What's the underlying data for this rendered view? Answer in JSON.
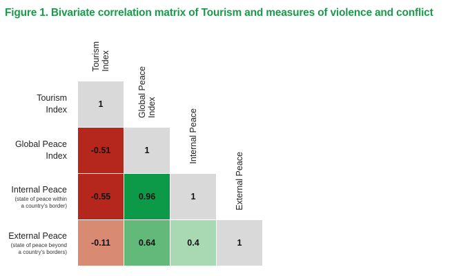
{
  "title": "Figure 1. Bivariate correlation matrix of Tourism and measures of violence and conflict",
  "chart_data": {
    "type": "heatmap",
    "columns": [
      [
        "Tourism",
        "Index"
      ],
      [
        "Global Peace",
        "Index"
      ],
      [
        "Internal Peace"
      ],
      [
        "External Peace"
      ]
    ],
    "rows": [
      {
        "label": [
          "Tourism",
          "Index"
        ],
        "sub": []
      },
      {
        "label": [
          "Global Peace",
          "Index"
        ],
        "sub": []
      },
      {
        "label": [
          "Internal Peace"
        ],
        "sub": [
          "(state of peace within",
          "a country's border)"
        ]
      },
      {
        "label": [
          "External Peace"
        ],
        "sub": [
          "(state of peace beyond",
          "a country's borders)"
        ]
      }
    ],
    "values": [
      [
        "1"
      ],
      [
        "-0.51",
        "1"
      ],
      [
        "-0.55",
        "0.96",
        "1"
      ],
      [
        "-0.11",
        "0.64",
        "0.4",
        "1"
      ]
    ],
    "colors": [
      [
        "#d9d9d9"
      ],
      [
        "#b5261c",
        "#d9d9d9"
      ],
      [
        "#b5261c",
        "#0d9a48",
        "#d9d9d9"
      ],
      [
        "#d88a72",
        "#63b97a",
        "#a9d9b2",
        "#d9d9d9"
      ]
    ]
  }
}
